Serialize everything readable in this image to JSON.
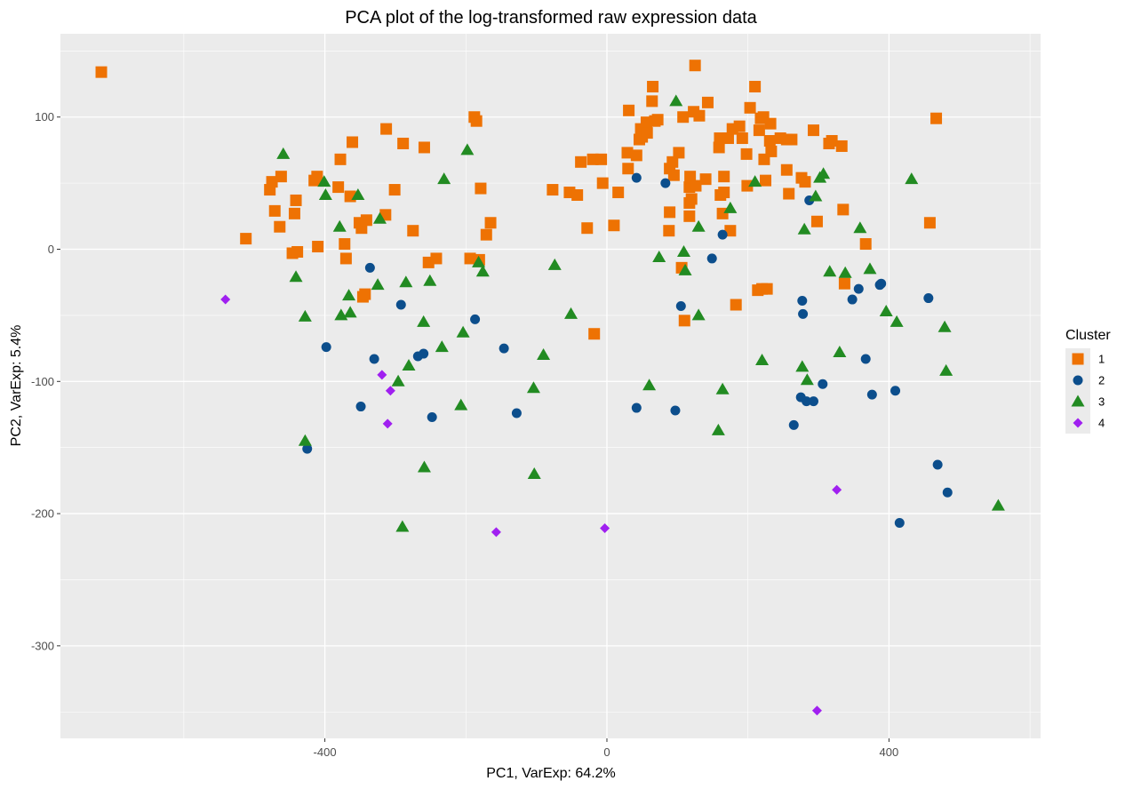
{
  "chart_data": {
    "type": "scatter",
    "title": "PCA plot of the log-transformed raw expression data",
    "xlabel": "PC1, VarExp: 64.2%",
    "ylabel": "PC2, VarExp: 5.4%",
    "xlim": [
      -775,
      615
    ],
    "ylim": [
      -370,
      163
    ],
    "x_ticks": [
      -400,
      0,
      400
    ],
    "y_ticks": [
      100,
      0,
      -100,
      -200,
      -300
    ],
    "grid": true,
    "legend_position": "right",
    "legend_title": "Cluster",
    "colors": {
      "panel": "#ebebeb",
      "grid": "#ffffff"
    },
    "series": [
      {
        "name": "1",
        "color": "#ee7203",
        "shape": "square",
        "points": [
          [
            -717,
            134
          ],
          [
            -512,
            8
          ],
          [
            -478,
            45
          ],
          [
            -475,
            51
          ],
          [
            -471,
            29
          ],
          [
            -464,
            17
          ],
          [
            -462,
            55
          ],
          [
            -446,
            -3
          ],
          [
            -443,
            27
          ],
          [
            -441,
            37
          ],
          [
            -439,
            -2
          ],
          [
            -415,
            52
          ],
          [
            -411,
            55
          ],
          [
            -410,
            2
          ],
          [
            -381,
            47
          ],
          [
            -378,
            68
          ],
          [
            -372,
            4
          ],
          [
            -370,
            -7
          ],
          [
            -364,
            40
          ],
          [
            -361,
            81
          ],
          [
            -351,
            20
          ],
          [
            -348,
            16
          ],
          [
            -346,
            -36
          ],
          [
            -343,
            -34
          ],
          [
            -341,
            22
          ],
          [
            -314,
            26
          ],
          [
            -313,
            91
          ],
          [
            -301,
            45
          ],
          [
            -289,
            80
          ],
          [
            -275,
            14
          ],
          [
            -259,
            77
          ],
          [
            -253,
            -10
          ],
          [
            -242,
            -7
          ],
          [
            -194,
            -7
          ],
          [
            -188,
            100
          ],
          [
            -185,
            97
          ],
          [
            -181,
            -8
          ],
          [
            -179,
            46
          ],
          [
            -171,
            11
          ],
          [
            -165,
            20
          ],
          [
            -77,
            45
          ],
          [
            -53,
            43
          ],
          [
            -42,
            41
          ],
          [
            -37,
            66
          ],
          [
            -28,
            16
          ],
          [
            -20,
            68
          ],
          [
            -18,
            -64
          ],
          [
            -8,
            68
          ],
          [
            -6,
            50
          ],
          [
            10,
            18
          ],
          [
            16,
            43
          ],
          [
            29,
            73
          ],
          [
            30,
            61
          ],
          [
            31,
            105
          ],
          [
            42,
            71
          ],
          [
            46,
            83
          ],
          [
            48,
            91
          ],
          [
            50,
            85
          ],
          [
            56,
            96
          ],
          [
            57,
            88
          ],
          [
            64,
            112
          ],
          [
            65,
            123
          ],
          [
            68,
            97
          ],
          [
            72,
            98
          ],
          [
            88,
            14
          ],
          [
            89,
            28
          ],
          [
            89,
            61
          ],
          [
            93,
            66
          ],
          [
            95,
            56
          ],
          [
            102,
            73
          ],
          [
            106,
            -14
          ],
          [
            108,
            100
          ],
          [
            110,
            -54
          ],
          [
            117,
            25
          ],
          [
            117,
            47
          ],
          [
            117,
            35
          ],
          [
            118,
            55
          ],
          [
            120,
            38
          ],
          [
            123,
            104
          ],
          [
            125,
            139
          ],
          [
            126,
            48
          ],
          [
            131,
            101
          ],
          [
            140,
            53
          ],
          [
            143,
            111
          ],
          [
            159,
            77
          ],
          [
            160,
            84
          ],
          [
            161,
            41
          ],
          [
            164,
            27
          ],
          [
            166,
            55
          ],
          [
            166,
            43
          ],
          [
            172,
            84
          ],
          [
            175,
            14
          ],
          [
            178,
            91
          ],
          [
            183,
            -42
          ],
          [
            188,
            93
          ],
          [
            192,
            84
          ],
          [
            198,
            72
          ],
          [
            199,
            48
          ],
          [
            203,
            107
          ],
          [
            210,
            123
          ],
          [
            214,
            -31
          ],
          [
            216,
            90
          ],
          [
            218,
            99
          ],
          [
            220,
            -30
          ],
          [
            222,
            100
          ],
          [
            223,
            68
          ],
          [
            225,
            52
          ],
          [
            227,
            -30
          ],
          [
            231,
            82
          ],
          [
            232,
            95
          ],
          [
            233,
            74
          ],
          [
            246,
            84
          ],
          [
            255,
            60
          ],
          [
            255,
            83
          ],
          [
            258,
            42
          ],
          [
            262,
            83
          ],
          [
            276,
            54
          ],
          [
            281,
            51
          ],
          [
            293,
            90
          ],
          [
            298,
            21
          ],
          [
            315,
            80
          ],
          [
            319,
            82
          ],
          [
            333,
            78
          ],
          [
            335,
            30
          ],
          [
            337,
            -26
          ],
          [
            367,
            4
          ],
          [
            458,
            20
          ],
          [
            467,
            99
          ]
        ]
      },
      {
        "name": "2",
        "color": "#0c4e8c",
        "shape": "circle",
        "points": [
          [
            -425,
            -151
          ],
          [
            -398,
            -74
          ],
          [
            -349,
            -119
          ],
          [
            -336,
            -14
          ],
          [
            -330,
            -83
          ],
          [
            -292,
            -42
          ],
          [
            -268,
            -81
          ],
          [
            -260,
            -79
          ],
          [
            -248,
            -127
          ],
          [
            -187,
            -53
          ],
          [
            -146,
            -75
          ],
          [
            -128,
            -124
          ],
          [
            42,
            54
          ],
          [
            42,
            -120
          ],
          [
            83,
            50
          ],
          [
            97,
            -122
          ],
          [
            105,
            -43
          ],
          [
            149,
            -7
          ],
          [
            164,
            11
          ],
          [
            265,
            -133
          ],
          [
            275,
            -112
          ],
          [
            277,
            -39
          ],
          [
            278,
            -49
          ],
          [
            283,
            -115
          ],
          [
            287,
            37
          ],
          [
            293,
            -115
          ],
          [
            306,
            -102
          ],
          [
            348,
            -38
          ],
          [
            357,
            -30
          ],
          [
            367,
            -83
          ],
          [
            376,
            -110
          ],
          [
            387,
            -27
          ],
          [
            389,
            -26
          ],
          [
            409,
            -107
          ],
          [
            415,
            -207
          ],
          [
            456,
            -37
          ],
          [
            469,
            -163
          ],
          [
            483,
            -184
          ]
        ]
      },
      {
        "name": "3",
        "color": "#228b22",
        "shape": "triangle",
        "points": [
          [
            -459,
            72
          ],
          [
            -441,
            -21
          ],
          [
            -428,
            -51
          ],
          [
            -428,
            -145
          ],
          [
            -401,
            51
          ],
          [
            -399,
            41
          ],
          [
            -379,
            17
          ],
          [
            -377,
            -50
          ],
          [
            -366,
            -35
          ],
          [
            -364,
            -48
          ],
          [
            -353,
            41
          ],
          [
            -325,
            -27
          ],
          [
            -322,
            23
          ],
          [
            -296,
            -100
          ],
          [
            -290,
            -210
          ],
          [
            -285,
            -25
          ],
          [
            -281,
            -88
          ],
          [
            -260,
            -55
          ],
          [
            -259,
            -165
          ],
          [
            -251,
            -24
          ],
          [
            -234,
            -74
          ],
          [
            -231,
            53
          ],
          [
            -207,
            -118
          ],
          [
            -204,
            -63
          ],
          [
            -198,
            75
          ],
          [
            -182,
            -10
          ],
          [
            -176,
            -17
          ],
          [
            -104,
            -105
          ],
          [
            -103,
            -170
          ],
          [
            -90,
            -80
          ],
          [
            -74,
            -12
          ],
          [
            -51,
            -49
          ],
          [
            60,
            -103
          ],
          [
            74,
            -6
          ],
          [
            98,
            112
          ],
          [
            109,
            -2
          ],
          [
            111,
            -16
          ],
          [
            130,
            17
          ],
          [
            130,
            -50
          ],
          [
            158,
            -137
          ],
          [
            164,
            -106
          ],
          [
            175,
            31
          ],
          [
            210,
            51
          ],
          [
            220,
            -84
          ],
          [
            277,
            -89
          ],
          [
            280,
            15
          ],
          [
            284,
            -99
          ],
          [
            296,
            40
          ],
          [
            302,
            54
          ],
          [
            307,
            57
          ],
          [
            316,
            -17
          ],
          [
            330,
            -78
          ],
          [
            338,
            -18
          ],
          [
            359,
            16
          ],
          [
            373,
            -15
          ],
          [
            396,
            -47
          ],
          [
            411,
            -55
          ],
          [
            432,
            53
          ],
          [
            479,
            -59
          ],
          [
            481,
            -92
          ],
          [
            555,
            -194
          ]
        ]
      },
      {
        "name": "4",
        "color": "#a020f0",
        "shape": "diamond",
        "points": [
          [
            -541,
            -38
          ],
          [
            -319,
            -95
          ],
          [
            -311,
            -132
          ],
          [
            -307,
            -107
          ],
          [
            -157,
            -214
          ],
          [
            -3,
            -211
          ],
          [
            326,
            -182
          ],
          [
            298,
            -349
          ]
        ]
      }
    ]
  }
}
